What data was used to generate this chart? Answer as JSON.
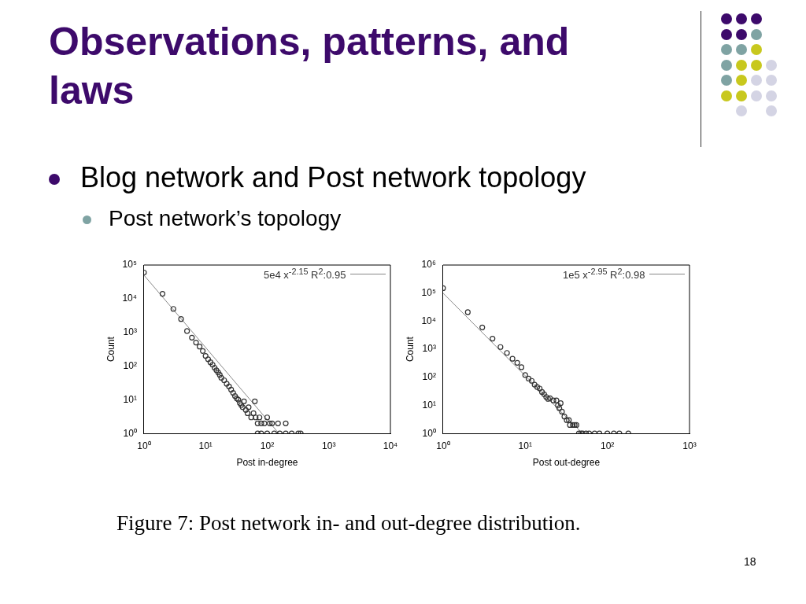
{
  "chart_data": [
    {
      "type": "scatter",
      "title": "Observations, patterns, and laws",
      "xlabel": "Post in-degree",
      "ylabel": "Count",
      "log": "xy",
      "legend": "top right",
      "grid": false,
      "annotations": [
        "Blog network and Post network topology",
        "Post network’s topology",
        "Figure 7: Post network in- and out-degree distribution.",
        "18"
      ],
      "xlim": [
        1,
        10000
      ],
      "ylim": [
        1,
        100000
      ],
      "xticks": [
        {
          "value": 1,
          "label": "10⁰"
        },
        {
          "value": 10,
          "label": "10¹"
        },
        {
          "value": 100,
          "label": "10²"
        },
        {
          "value": 1000,
          "label": "10³"
        },
        {
          "value": 10000,
          "label": "10⁴"
        }
      ],
      "yticks": [
        {
          "value": 1,
          "label": "10⁰"
        },
        {
          "value": 10,
          "label": "10¹"
        },
        {
          "value": 100,
          "label": "10²"
        },
        {
          "value": 1000,
          "label": "10³"
        },
        {
          "value": 10000,
          "label": "10⁴"
        },
        {
          "value": 100000,
          "label": "10⁵"
        }
      ],
      "series": [
        {
          "marker": "circle",
          "color": "#333333",
          "x": [
            1,
            2,
            3,
            4,
            5,
            6,
            7,
            8,
            9,
            10,
            11,
            12,
            13,
            14,
            15,
            16,
            17,
            18,
            20,
            22,
            24,
            26,
            28,
            30,
            32,
            34,
            36,
            38,
            40,
            42,
            45,
            48,
            50,
            55,
            60,
            63,
            65,
            70,
            75,
            80,
            90,
            100,
            110,
            120,
            150,
            200,
            70,
            80,
            100,
            130,
            160,
            200,
            250,
            320,
            350
          ],
          "values": [
            60000,
            14000,
            5000,
            2500,
            1100,
            700,
            500,
            380,
            280,
            200,
            160,
            130,
            110,
            90,
            75,
            65,
            55,
            45,
            38,
            30,
            25,
            20,
            16,
            13,
            11,
            10,
            8,
            7,
            6,
            9,
            5,
            4,
            6,
            3,
            4,
            9,
            3,
            2,
            3,
            2,
            2,
            3,
            2,
            2,
            2,
            2,
            1,
            1,
            1,
            1,
            1,
            1,
            1,
            1,
            1
          ]
        },
        {
          "type": "line",
          "marker": "none",
          "name": "5e4 x$^{-2.15}$ R$^{2}$:0.95",
          "color": "#888888",
          "x": [
            1,
            155
          ],
          "values": [
            50000,
            1
          ]
        }
      ]
    },
    {
      "type": "scatter",
      "xlabel": "Post out-degree",
      "ylabel": "Count",
      "log": "xy",
      "legend": "top right",
      "grid": false,
      "xlim": [
        1,
        1000
      ],
      "ylim": [
        1,
        1000000
      ],
      "xticks": [
        {
          "value": 1,
          "label": "10⁰"
        },
        {
          "value": 10,
          "label": "10¹"
        },
        {
          "value": 100,
          "label": "10²"
        },
        {
          "value": 1000,
          "label": "10³"
        }
      ],
      "yticks": [
        {
          "value": 1,
          "label": "10⁰"
        },
        {
          "value": 10,
          "label": "10¹"
        },
        {
          "value": 100,
          "label": "10²"
        },
        {
          "value": 1000,
          "label": "10³"
        },
        {
          "value": 10000,
          "label": "10⁴"
        },
        {
          "value": 100000,
          "label": "10⁵"
        },
        {
          "value": 1000000,
          "label": "10⁶"
        }
      ],
      "series": [
        {
          "marker": "circle",
          "color": "#333333",
          "x": [
            1,
            2,
            3,
            4,
            5,
            6,
            7,
            8,
            9,
            10,
            11,
            12,
            13,
            14,
            15,
            16,
            17,
            18,
            19,
            20,
            22,
            24,
            25,
            26,
            27,
            28,
            30,
            32,
            34,
            35,
            38,
            40,
            42,
            45,
            48,
            50,
            55,
            60,
            70,
            80,
            100,
            120,
            140,
            180
          ],
          "values": [
            150000,
            21000,
            6000,
            2400,
            1200,
            740,
            460,
            330,
            230,
            120,
            90,
            75,
            55,
            45,
            40,
            30,
            25,
            20,
            17,
            18,
            15,
            15,
            10,
            8,
            12,
            6,
            4,
            3,
            3,
            2,
            2,
            2,
            2,
            1,
            1,
            1,
            1,
            1,
            1,
            1,
            1,
            1,
            1,
            1
          ]
        },
        {
          "type": "line",
          "marker": "none",
          "name": "1e5 x$^{-2.95}$ R$^{2}$:0.98",
          "color": "#888888",
          "x": [
            1,
            50
          ],
          "values": [
            100000,
            1
          ]
        }
      ]
    }
  ]
}
